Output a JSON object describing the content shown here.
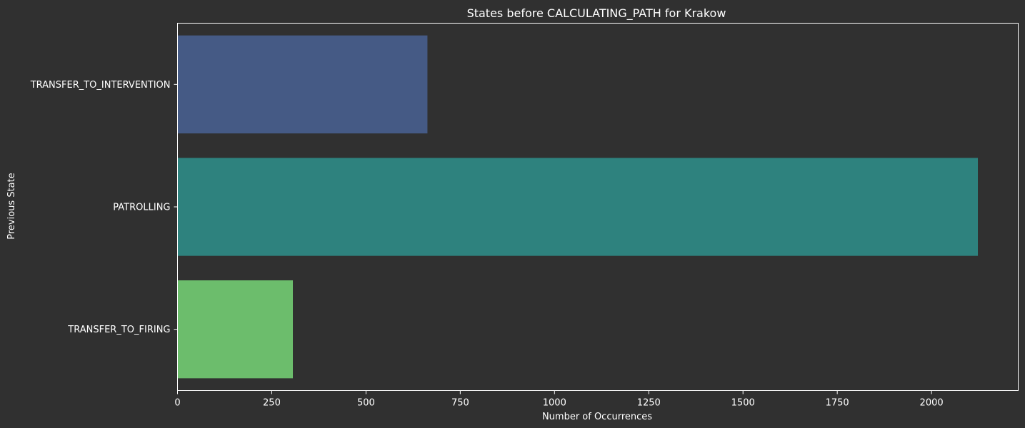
{
  "chart_data": {
    "type": "bar",
    "orientation": "horizontal",
    "title": "States before CALCULATING_PATH for Krakow",
    "xlabel": "Number of Occurrences",
    "ylabel": "Previous State",
    "categories": [
      "TRANSFER_TO_INTERVENTION",
      "PATROLLING",
      "TRANSFER_TO_FIRING"
    ],
    "values": [
      663,
      2123,
      306
    ],
    "bar_colors": [
      "#455a85",
      "#2e827e",
      "#6cbd6c"
    ],
    "xlim": [
      0,
      2230
    ],
    "xticks": [
      0,
      250,
      500,
      750,
      1000,
      1250,
      1500,
      1750,
      2000
    ],
    "xtick_labels": [
      "0",
      "250",
      "500",
      "750",
      "1000",
      "1250",
      "1500",
      "1750",
      "2000"
    ],
    "grid": false,
    "legend": "none"
  },
  "colors": {
    "background": "#303030",
    "axis": "#ffffff",
    "text": "#ffffff"
  }
}
